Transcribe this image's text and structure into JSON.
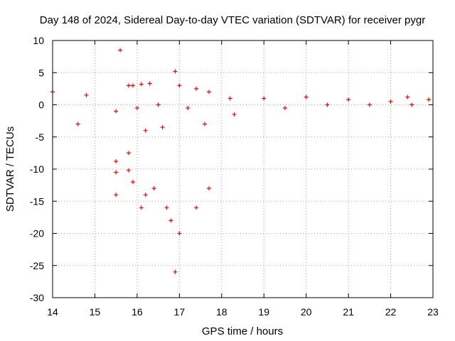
{
  "chart_data": {
    "type": "scatter",
    "title": "Day 148 of 2024, Sidereal Day-to-day VTEC variation (SDTVAR) for receiver pygr",
    "xlabel": "GPS time / hours",
    "ylabel": "SDTVAR / TECUs",
    "xlim": [
      14,
      23
    ],
    "ylim": [
      -30,
      10
    ],
    "xticks": [
      14,
      15,
      16,
      17,
      18,
      19,
      20,
      21,
      22,
      23
    ],
    "yticks": [
      -30,
      -25,
      -20,
      -15,
      -10,
      -5,
      0,
      5,
      10
    ],
    "grid": true,
    "marker": "+",
    "color": "#ff0000",
    "series": [
      {
        "name": "pygr",
        "x": [
          15.6,
          14.0,
          14.8,
          15.8,
          16.1,
          16.3,
          17.0,
          17.4,
          17.7,
          18.2,
          19.0,
          20.0,
          21.0,
          22.0,
          22.4,
          22.9,
          14.6,
          15.5,
          16.0,
          16.5,
          17.2,
          17.6,
          18.3,
          19.5,
          20.5,
          21.5,
          22.5,
          15.5,
          15.8,
          16.2,
          16.6,
          15.5,
          15.9,
          16.1,
          16.4,
          15.5,
          15.8,
          16.2,
          16.7,
          16.8,
          17.0,
          17.4,
          17.7,
          15.9,
          16.9,
          16.9
        ],
        "y": [
          8.5,
          2.0,
          1.5,
          3.0,
          3.2,
          3.3,
          3.0,
          2.5,
          2.0,
          1.0,
          1.0,
          1.2,
          0.8,
          0.5,
          1.2,
          0.8,
          -3.0,
          -1.0,
          -0.5,
          0.0,
          -0.5,
          -3.0,
          -1.5,
          -0.5,
          0.0,
          0.0,
          0.0,
          -8.8,
          -7.5,
          -4.0,
          -3.5,
          -14.0,
          -12.0,
          -16.0,
          -13.0,
          -10.5,
          -10.2,
          -14.0,
          -16.0,
          -18.0,
          -20.0,
          -16.0,
          -13.0,
          3.0,
          5.2,
          -26.0
        ]
      }
    ]
  }
}
